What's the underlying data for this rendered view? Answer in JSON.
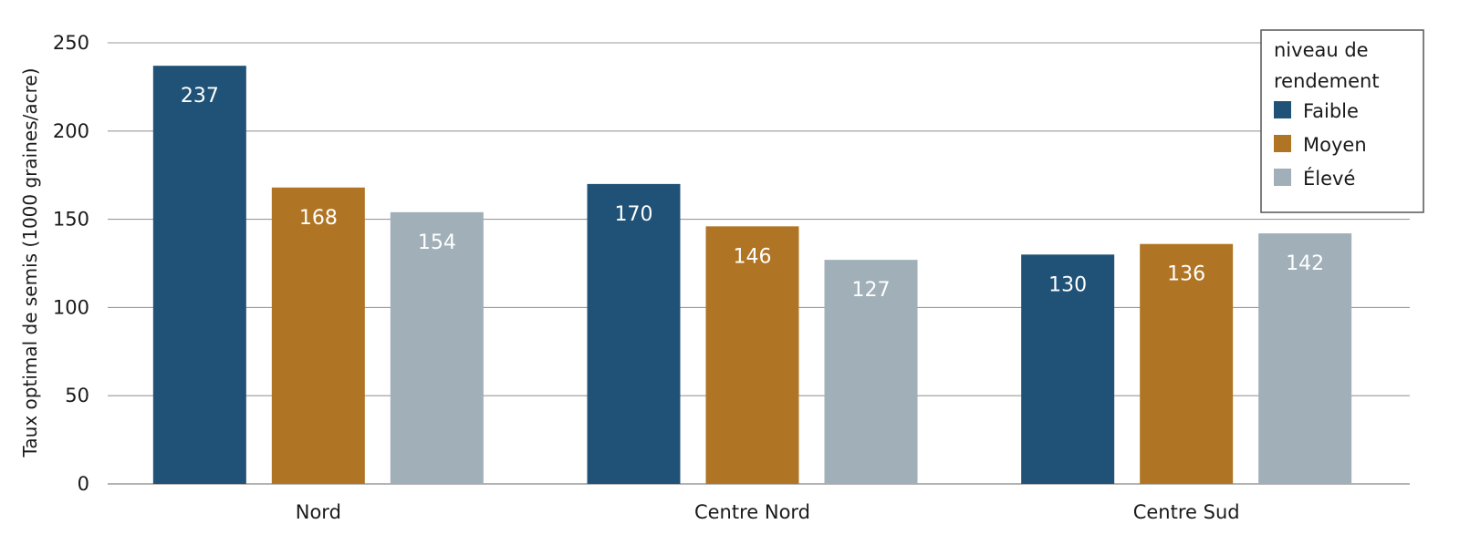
{
  "chart_data": {
    "type": "bar",
    "title": "",
    "xlabel": "",
    "ylabel": "Taux optimal de semis (1000 graines/acre)",
    "categories": [
      "Nord",
      "Centre Nord",
      "Centre Sud"
    ],
    "series": [
      {
        "name": "Faible",
        "values": [
          237,
          170,
          130
        ],
        "color": "#1f5276"
      },
      {
        "name": "Moyen",
        "values": [
          168,
          146,
          136
        ],
        "color": "#b07524"
      },
      {
        "name": "Élevé",
        "values": [
          154,
          127,
          142
        ],
        "color": "#a0afb8"
      }
    ],
    "ylim": [
      0,
      250
    ],
    "yticks": [
      0,
      50,
      100,
      150,
      200,
      250
    ],
    "grid": true,
    "legend": {
      "title_lines": [
        "niveau de",
        "rendement"
      ],
      "placement": "top-right"
    },
    "data_label_color": "#ffffff",
    "grid_color": "#9a9a9a"
  }
}
